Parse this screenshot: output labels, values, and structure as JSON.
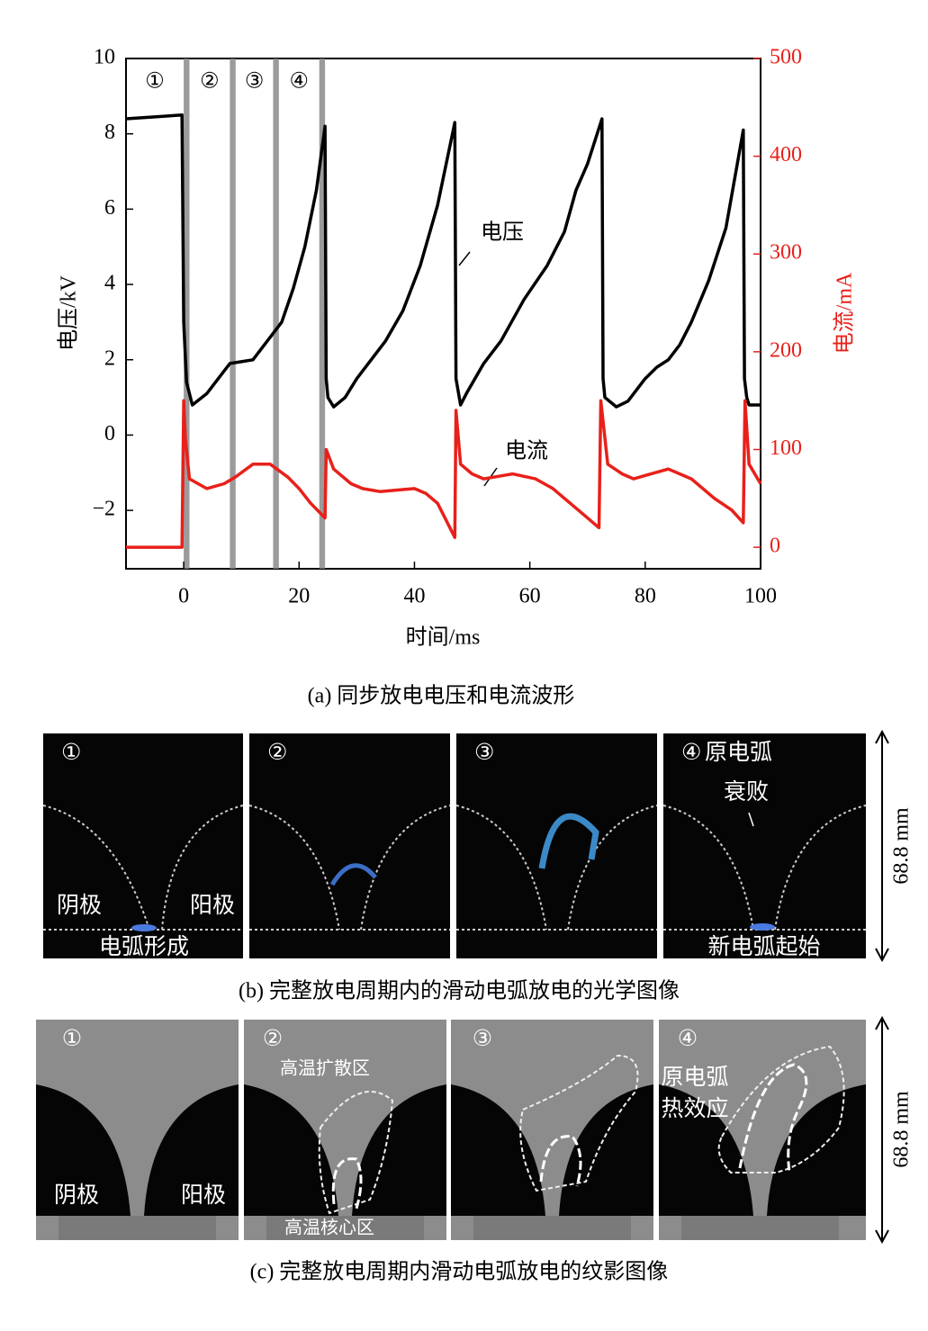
{
  "chart_data": {
    "type": "line",
    "caption": "(a) 同步放电电压和电流波形",
    "xlabel": "时间/ms",
    "ylabel": "电压/kV",
    "y2label": "电流/mA",
    "xlim": [
      -10,
      100
    ],
    "xticks": [
      0,
      20,
      40,
      60,
      80,
      100
    ],
    "ylim": [
      -3.55,
      10
    ],
    "yticks": [
      {
        "value": -2,
        "label": "−2"
      },
      0,
      2,
      4,
      6,
      8,
      10
    ],
    "y2lim": [
      -22,
      500
    ],
    "y2ticks": [
      0,
      100,
      200,
      300,
      400,
      500
    ],
    "markers": [
      {
        "label": "①",
        "x": [
          0,
          1
        ]
      },
      {
        "label": "②",
        "x": [
          8,
          9
        ]
      },
      {
        "label": "③",
        "x": [
          15.5,
          16.5
        ]
      },
      {
        "label": "④",
        "x": [
          23.5,
          24.5
        ]
      }
    ],
    "series": [
      {
        "name": "电压",
        "color": "#000000",
        "x": [
          -10,
          -5,
          -0.3,
          0,
          0.5,
          1.5,
          4,
          6,
          8,
          10,
          12,
          15,
          17,
          19,
          21,
          23,
          24.5,
          24.7,
          25,
          26,
          28,
          30,
          33,
          35,
          38,
          41,
          44,
          47,
          47.2,
          48,
          49,
          52,
          55,
          59,
          63,
          66,
          68,
          70,
          72.5,
          72.7,
          73,
          75,
          77,
          80,
          82,
          84,
          86,
          88,
          91,
          94,
          97,
          97.2,
          97.6,
          98,
          100
        ],
        "values": [
          8.4,
          8.45,
          8.5,
          3,
          1.4,
          0.8,
          1.1,
          1.5,
          1.9,
          1.95,
          2.0,
          2.6,
          3.0,
          3.9,
          5.0,
          6.5,
          8.2,
          1.5,
          1.0,
          0.75,
          1.0,
          1.5,
          2.1,
          2.5,
          3.3,
          4.5,
          6.1,
          8.3,
          1.5,
          0.8,
          1.1,
          1.9,
          2.5,
          3.6,
          4.5,
          5.4,
          6.5,
          7.2,
          8.4,
          1.5,
          1.0,
          0.75,
          0.9,
          1.5,
          1.8,
          2.0,
          2.4,
          3.0,
          4.1,
          5.5,
          8.1,
          1.5,
          1.0,
          0.8,
          0.8
        ]
      },
      {
        "name": "电流",
        "color": "#e8201a",
        "axis": "y2",
        "x": [
          -10,
          -5,
          -0.3,
          0,
          0.3,
          1,
          4,
          7,
          9,
          12,
          15,
          18,
          20,
          22,
          24.5,
          24.7,
          26,
          29,
          31,
          34,
          36,
          40,
          42,
          44,
          47,
          47.2,
          48,
          50,
          52,
          55,
          57,
          61,
          64,
          66,
          69,
          72,
          72.3,
          73.5,
          76,
          78,
          81,
          84,
          88,
          90,
          92,
          95,
          97,
          97.3,
          98,
          100
        ],
        "values": [
          0,
          0,
          0,
          150,
          110,
          70,
          60,
          65,
          72,
          85,
          85,
          72,
          60,
          45,
          30,
          100,
          80,
          65,
          60,
          57,
          58,
          60,
          55,
          45,
          10,
          140,
          85,
          75,
          70,
          73,
          75,
          70,
          60,
          50,
          35,
          20,
          150,
          85,
          75,
          70,
          75,
          80,
          70,
          60,
          50,
          38,
          25,
          150,
          85,
          65
        ]
      }
    ],
    "annotations": [
      "电压",
      "电流"
    ]
  },
  "figure_b": {
    "caption": "(b) 完整放电周期内的滑动电弧放电的光学图像",
    "scale": "68.8 mm",
    "panels": [
      {
        "number": "①",
        "labels": [
          "阴极",
          "阳极",
          "电弧形成"
        ]
      },
      {
        "number": "②"
      },
      {
        "number": "③"
      },
      {
        "number": "④",
        "labels": [
          "原电弧",
          "衰败",
          "新电弧起始"
        ]
      }
    ]
  },
  "figure_c": {
    "caption": "(c) 完整放电周期内滑动电弧放电的纹影图像",
    "scale": "68.8 mm",
    "panels": [
      {
        "number": "①",
        "labels": [
          "阴极",
          "阳极"
        ]
      },
      {
        "number": "②",
        "labels": [
          "高温扩散区",
          "高温核心区"
        ]
      },
      {
        "number": "③"
      },
      {
        "number": "④",
        "labels": [
          "原电弧",
          "热效应"
        ]
      }
    ]
  }
}
